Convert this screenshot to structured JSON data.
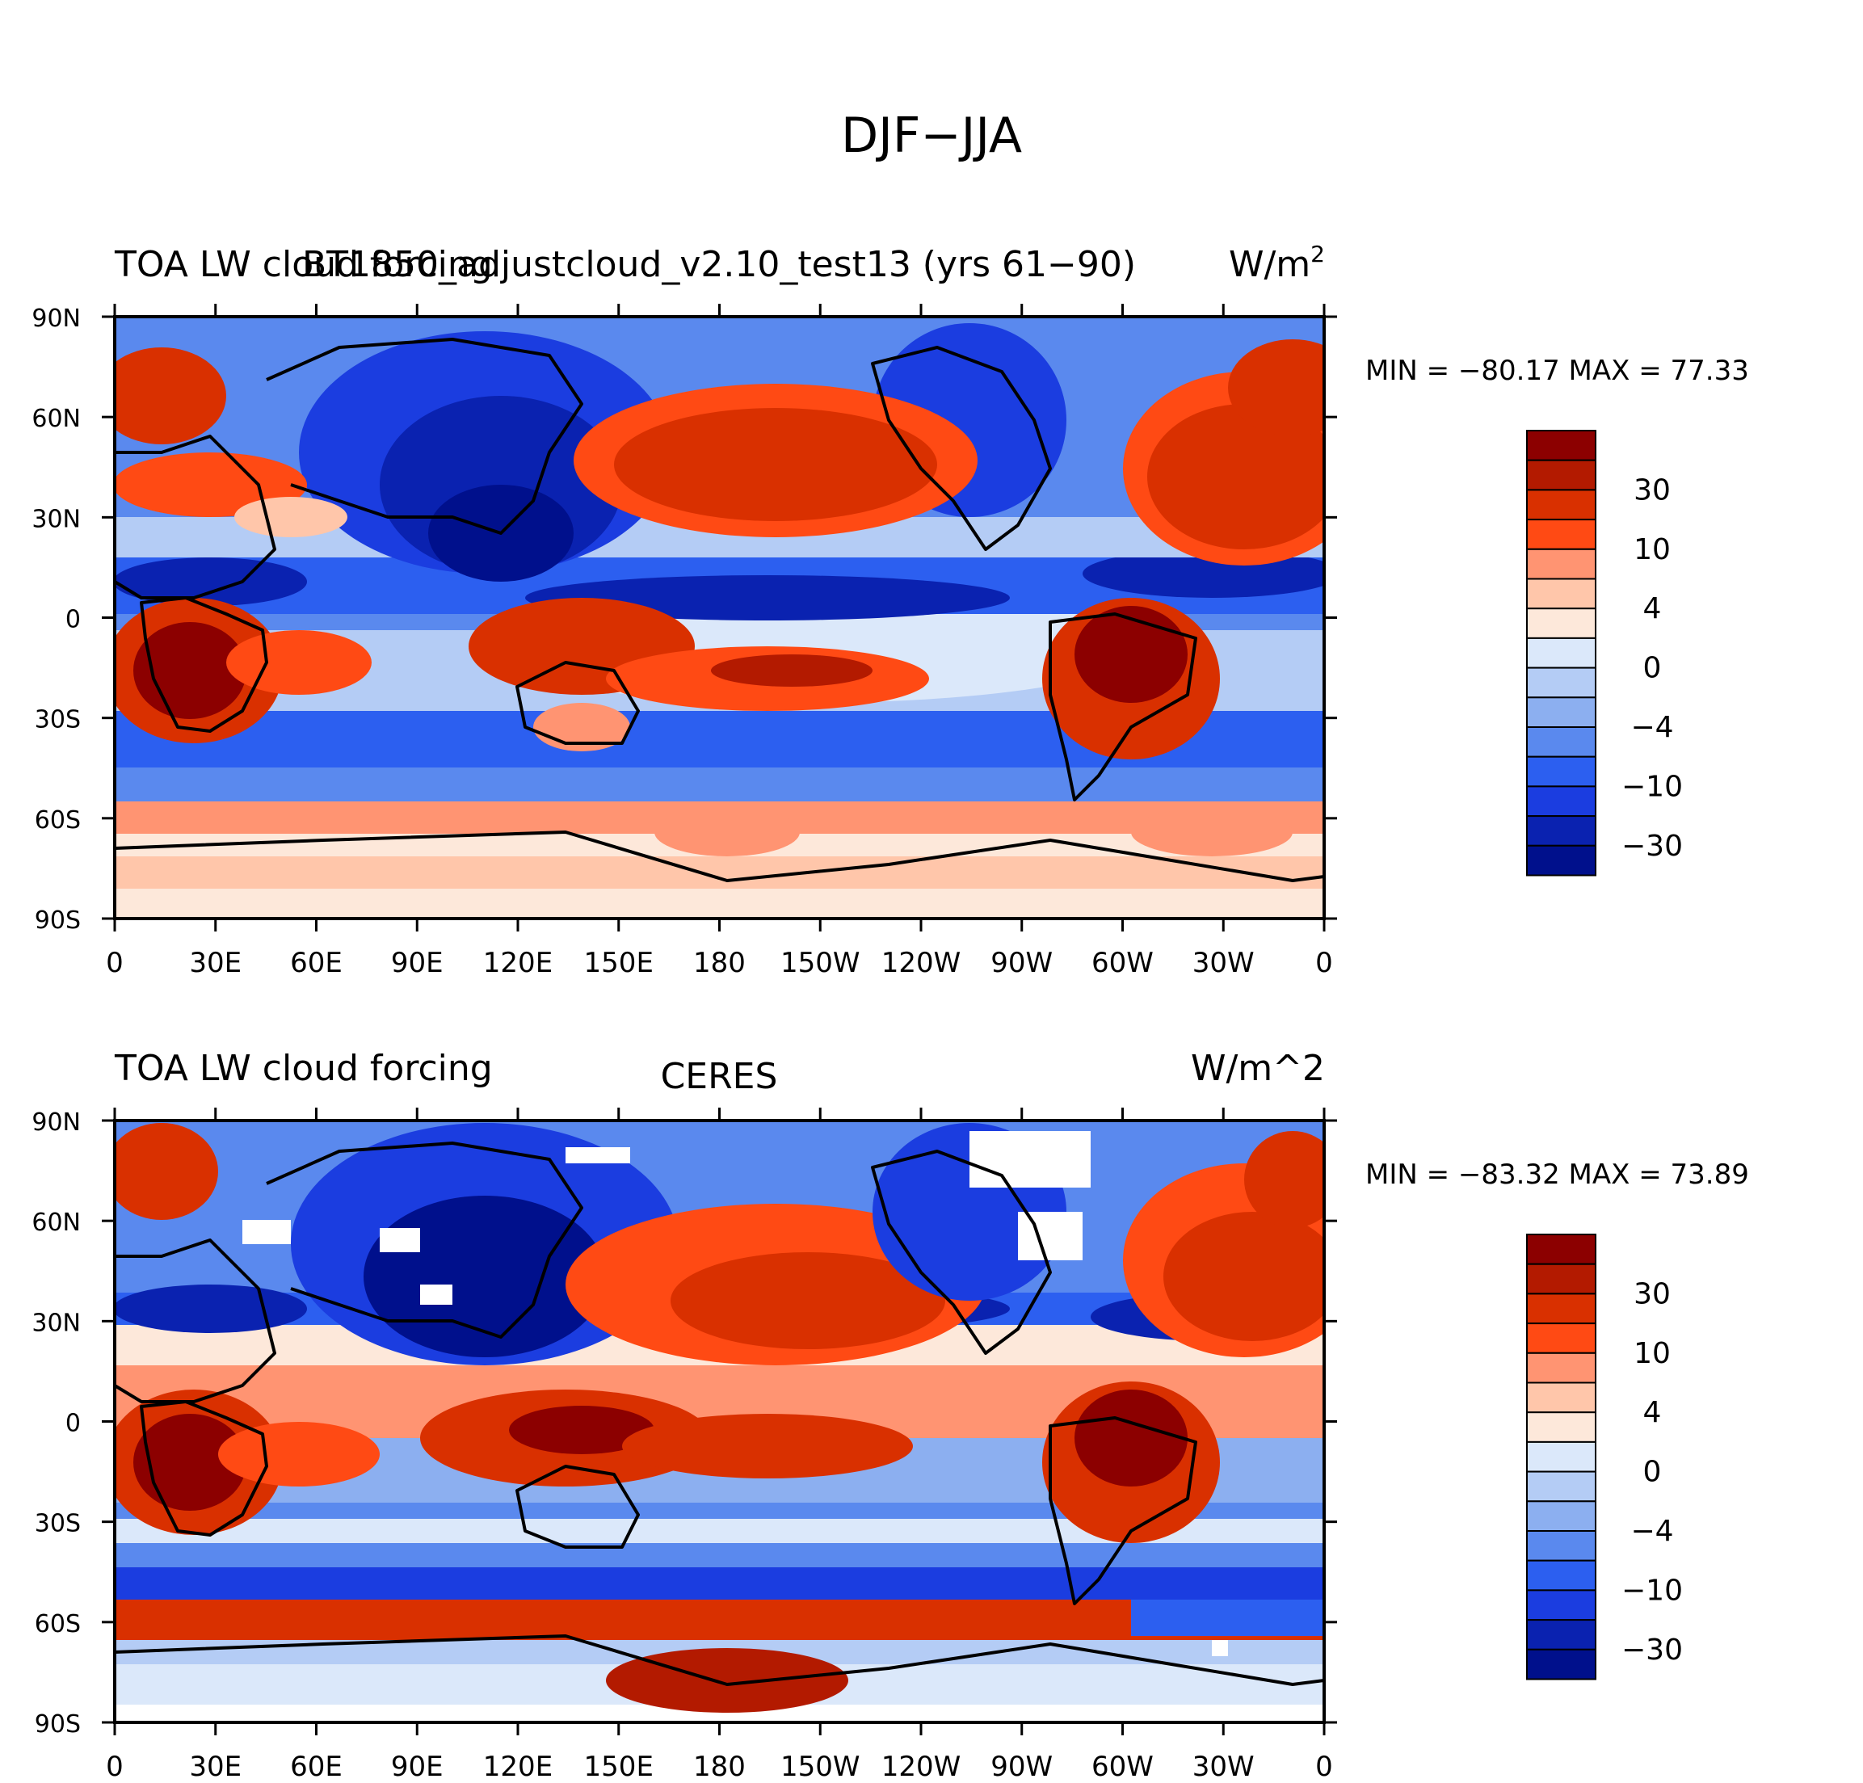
{
  "figure": {
    "title": "DJF−JJA"
  },
  "lon_ticks": [
    "0",
    "30E",
    "60E",
    "90E",
    "120E",
    "150E",
    "180",
    "150W",
    "120W",
    "90W",
    "60W",
    "30W",
    "0"
  ],
  "lat_ticks": [
    "90N",
    "60N",
    "30N",
    "0",
    "30S",
    "60S",
    "90S"
  ],
  "colorbar": {
    "levels": [
      "30",
      "10",
      "4",
      "0",
      "−4",
      "−10",
      "−30"
    ],
    "colors": [
      "#8c0000",
      "#b31a00",
      "#d93000",
      "#ff4a14",
      "#ff9472",
      "#ffc6aa",
      "#fde8da",
      "#dbe8fa",
      "#b4ccf5",
      "#8caff0",
      "#5a89ee",
      "#2c5ff0",
      "#1b3de0",
      "#0a22b0",
      "#00108c"
    ]
  },
  "panels": [
    {
      "left_title": "TOA LW cloud forcing",
      "center_title": "BT1850_adjustcloud_v2.10_test13 (yrs 61−90)",
      "right_title": "W/m",
      "right_title_sup": "2",
      "stats": "MIN = −80.17 MAX =   77.33"
    },
    {
      "left_title": "TOA LW cloud forcing",
      "center_title": "CERES",
      "right_title": "W/m^2",
      "right_title_sup": "",
      "stats": "MIN = −83.32 MAX =   73.89"
    }
  ]
}
